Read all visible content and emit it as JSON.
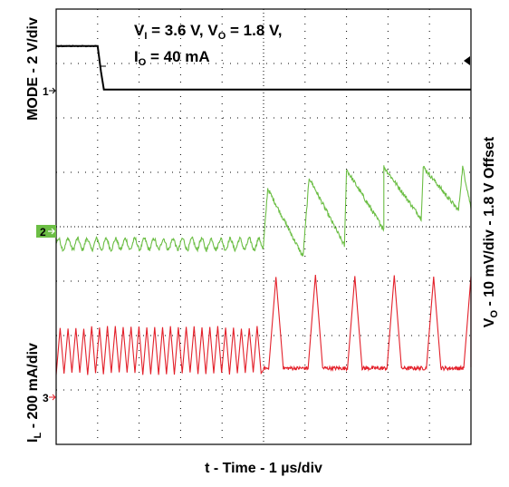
{
  "chart_data": {
    "type": "line",
    "title": "",
    "conditions": {
      "line1_prefix": "V",
      "line1_sub1": "I",
      "line1_mid": " = 3.6 V, V",
      "line1_sub2": "O",
      "line1_end": " = 1.8 V,",
      "line2_prefix": "I",
      "line2_sub": "O",
      "line2_end": " = 40 mA"
    },
    "xlabel": "t - Time - 1 µs/div",
    "ylabel_left_top": "MODE - 2 V/div",
    "ylabel_left_bottom": {
      "prefix": "I",
      "sub": "L",
      "rest": " - 200 mA/div"
    },
    "ylabel_right": {
      "prefix": "V",
      "sub": "O",
      "rest": " - 10 mV/div - 1.8 V Offset"
    },
    "grid": true,
    "grid_divisions": {
      "x": 10,
      "y": 8
    },
    "xlim": [
      0,
      10
    ],
    "ylim": [
      0,
      8
    ],
    "colors": {
      "ch1": "#000000",
      "ch2": "#6cbe45",
      "ch3": "#e3202a",
      "grid": "#000000"
    },
    "series": [
      {
        "name": "MODE",
        "marker": "1",
        "units_per_div": "2 V/div",
        "ground_div": 6.45,
        "x": [
          0,
          1.0,
          1.08,
          1.15,
          10
        ],
        "y": [
          7.32,
          7.32,
          6.85,
          6.52,
          6.52
        ]
      },
      {
        "name": "VO",
        "marker": "2",
        "units_per_div": "10 mV/div",
        "ground_div": 3.7,
        "segments": [
          {
            "mode": "forced-PWM ripple",
            "x": [
              0,
              5.0
            ],
            "center_div": 3.68,
            "amplitude_div": 0.1,
            "period_div": 0.23
          },
          {
            "mode": "PFM sawtooth",
            "x": [
              5.0,
              10
            ],
            "peaks_x": [
              5.1,
              6.1,
              7.0,
              7.9,
              8.85,
              9.8
            ],
            "peaks_div": [
              4.7,
              4.9,
              5.05,
              5.1,
              5.1,
              5.1
            ],
            "valleys_x": [
              5.95,
              6.95,
              7.9,
              8.8,
              9.7
            ],
            "valleys_div": [
              3.45,
              3.65,
              3.95,
              4.15,
              4.3
            ]
          }
        ]
      },
      {
        "name": "IL",
        "marker": "3",
        "units_per_div": "200 mA/div",
        "ground_div": 1.35,
        "segments": [
          {
            "mode": "forced-PWM triangle",
            "x": [
              0,
              5.0
            ],
            "min_div": 1.3,
            "max_div": 2.15,
            "period_div": 0.19
          },
          {
            "mode": "PFM pulses",
            "x": [
              5.0,
              10
            ],
            "pulse_x": [
              5.3,
              6.25,
              7.2,
              8.15,
              9.1,
              10.0
            ],
            "peak_div": 3.1,
            "base_div": 1.4,
            "pulse_width_div": 0.35
          }
        ]
      }
    ]
  }
}
